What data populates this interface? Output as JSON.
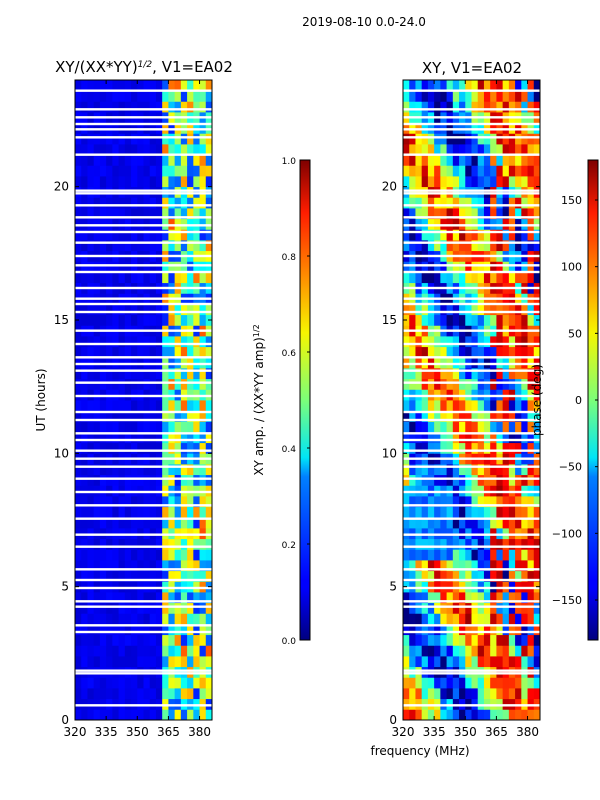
{
  "figure_title": "2019-08-10 0.0-24.0",
  "chart_data": [
    {
      "type": "heatmap",
      "panel": "left",
      "title": "XY/(XX*YY)",
      "title_exponent": "1/2",
      "title_suffix": ", V1=EA02",
      "xlabel": "",
      "ylabel": "UT (hours)",
      "xlim": [
        320,
        386
      ],
      "ylim": [
        0,
        24
      ],
      "xticks": [
        "320",
        "335",
        "350",
        "365",
        "380"
      ],
      "xtick_values": [
        320,
        335,
        350,
        365,
        380
      ],
      "yticks": [
        "0",
        "5",
        "10",
        "15",
        "20"
      ],
      "ytick_values": [
        0,
        5,
        10,
        15,
        20
      ],
      "colormap": "jet",
      "colorbar": {
        "label": "XY amp. / (XX*YY amp)",
        "label_exponent": "1/2",
        "range": [
          0.0,
          1.0
        ],
        "ticks": [
          "0.0",
          "0.2",
          "0.4",
          "0.6",
          "0.8",
          "1.0"
        ],
        "tick_values": [
          0.0,
          0.2,
          0.4,
          0.6,
          0.8,
          1.0
        ]
      },
      "low_value_region_mhz": [
        320,
        362
      ],
      "high_value_region_mhz": [
        362,
        384
      ],
      "flagged_hours": [
        0.55,
        1.75,
        1.85,
        3.3,
        3.55,
        4.25,
        4.45,
        4.95,
        5.25,
        5.65,
        6.5,
        6.95,
        7.55,
        8.05,
        8.55,
        9.05,
        9.5,
        9.8,
        10.1,
        10.5,
        10.75,
        11.25,
        11.55,
        12.15,
        12.65,
        13.1,
        13.35,
        13.6,
        14.1,
        14.6,
        15.3,
        15.6,
        15.8,
        16.2,
        16.8,
        17.05,
        17.4,
        17.9,
        18.3,
        18.55,
        18.85,
        19.3,
        19.75,
        19.85,
        21.2,
        21.85,
        22.15,
        22.35,
        22.6,
        22.9,
        23.6
      ]
    },
    {
      "type": "heatmap",
      "panel": "right",
      "title": "XY, V1=EA02",
      "xlabel": "frequency (MHz)",
      "ylabel": "",
      "xlim": [
        320,
        386
      ],
      "ylim": [
        0,
        24
      ],
      "xticks": [
        "320",
        "335",
        "350",
        "365",
        "380"
      ],
      "xtick_values": [
        320,
        335,
        350,
        365,
        380
      ],
      "yticks": [
        "0",
        "5",
        "10",
        "15",
        "20"
      ],
      "ytick_values": [
        0,
        5,
        10,
        15,
        20
      ],
      "colormap": "jet",
      "colorbar": {
        "label": "phase (deg)",
        "range": [
          -180,
          180
        ],
        "ticks": [
          "−150",
          "−100",
          "−50",
          "0",
          "50",
          "100",
          "150"
        ],
        "tick_values": [
          -150,
          -100,
          -50,
          0,
          50,
          100,
          150
        ]
      },
      "flagged_hours": [
        0.55,
        1.75,
        1.85,
        3.3,
        3.55,
        4.25,
        4.45,
        4.95,
        5.25,
        5.65,
        6.5,
        6.95,
        7.55,
        8.05,
        8.55,
        9.05,
        9.5,
        9.8,
        10.1,
        10.5,
        10.75,
        11.25,
        11.55,
        12.15,
        12.65,
        13.1,
        13.35,
        13.6,
        14.1,
        14.6,
        15.3,
        15.6,
        15.8,
        16.2,
        16.8,
        17.05,
        17.4,
        17.9,
        18.3,
        18.55,
        18.85,
        19.3,
        19.75,
        19.85,
        21.2,
        21.85,
        22.15,
        22.35,
        22.6,
        22.9,
        23.6
      ]
    }
  ]
}
